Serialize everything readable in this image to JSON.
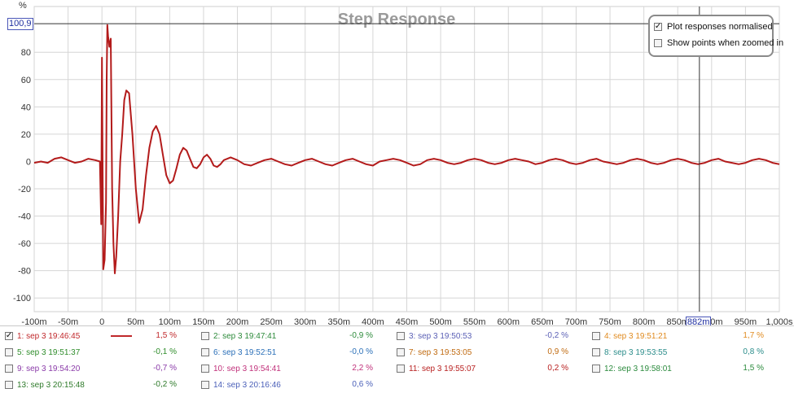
{
  "chart_data": {
    "type": "line",
    "title": "Step Response",
    "ylabel": "%",
    "xlim": [
      -0.1,
      1.0
    ],
    "ylim": [
      -110,
      101
    ],
    "x_ticks": [
      {
        "v": -0.1,
        "label": "-100m"
      },
      {
        "v": -0.05,
        "label": "-50m"
      },
      {
        "v": 0,
        "label": "0"
      },
      {
        "v": 0.05,
        "label": "50m"
      },
      {
        "v": 0.1,
        "label": "100m"
      },
      {
        "v": 0.15,
        "label": "150m"
      },
      {
        "v": 0.2,
        "label": "200m"
      },
      {
        "v": 0.25,
        "label": "250m"
      },
      {
        "v": 0.3,
        "label": "300m"
      },
      {
        "v": 0.35,
        "label": "350m"
      },
      {
        "v": 0.4,
        "label": "400m"
      },
      {
        "v": 0.45,
        "label": "450m"
      },
      {
        "v": 0.5,
        "label": "500m"
      },
      {
        "v": 0.55,
        "label": "550m"
      },
      {
        "v": 0.6,
        "label": "600m"
      },
      {
        "v": 0.65,
        "label": "650m"
      },
      {
        "v": 0.7,
        "label": "700m"
      },
      {
        "v": 0.75,
        "label": "750m"
      },
      {
        "v": 0.8,
        "label": "800m"
      },
      {
        "v": 0.85,
        "label": "850m"
      },
      {
        "v": 0.9,
        "label": "900m"
      },
      {
        "v": 0.95,
        "label": "950m"
      },
      {
        "v": 1.0,
        "label": "1,000s"
      }
    ],
    "y_ticks": [
      -100,
      -80,
      -60,
      -40,
      -20,
      0,
      20,
      40,
      60,
      80
    ],
    "grid": true,
    "cursor": {
      "x": 0.882,
      "x_label": "882m",
      "y": 100.9,
      "y_label": "100,9"
    },
    "series": [
      {
        "name": "1: sep 3 19:46:45",
        "color": "#b31b1b",
        "x": [
          -0.1,
          -0.09,
          -0.08,
          -0.07,
          -0.06,
          -0.05,
          -0.04,
          -0.03,
          -0.02,
          -0.01,
          -0.003,
          -0.001,
          0.0,
          0.002,
          0.004,
          0.006,
          0.007,
          0.008,
          0.009,
          0.011,
          0.013,
          0.015,
          0.017,
          0.019,
          0.021,
          0.024,
          0.027,
          0.03,
          0.033,
          0.036,
          0.04,
          0.045,
          0.05,
          0.055,
          0.06,
          0.065,
          0.07,
          0.075,
          0.08,
          0.085,
          0.09,
          0.095,
          0.1,
          0.105,
          0.11,
          0.115,
          0.12,
          0.125,
          0.13,
          0.135,
          0.14,
          0.145,
          0.15,
          0.155,
          0.16,
          0.165,
          0.17,
          0.175,
          0.18,
          0.19,
          0.2,
          0.21,
          0.22,
          0.23,
          0.24,
          0.25,
          0.26,
          0.27,
          0.28,
          0.29,
          0.3,
          0.31,
          0.32,
          0.33,
          0.34,
          0.35,
          0.36,
          0.37,
          0.38,
          0.39,
          0.4,
          0.41,
          0.42,
          0.43,
          0.44,
          0.45,
          0.46,
          0.47,
          0.48,
          0.49,
          0.5,
          0.51,
          0.52,
          0.53,
          0.54,
          0.55,
          0.56,
          0.57,
          0.58,
          0.59,
          0.6,
          0.61,
          0.62,
          0.63,
          0.64,
          0.65,
          0.66,
          0.67,
          0.68,
          0.69,
          0.7,
          0.71,
          0.72,
          0.73,
          0.74,
          0.75,
          0.76,
          0.77,
          0.78,
          0.79,
          0.8,
          0.81,
          0.82,
          0.83,
          0.84,
          0.85,
          0.86,
          0.87,
          0.88,
          0.89,
          0.9,
          0.91,
          0.92,
          0.93,
          0.94,
          0.95,
          0.96,
          0.97,
          0.98,
          0.99,
          1.0
        ],
        "y": [
          -1,
          0,
          -1,
          2,
          3,
          1,
          -1,
          0,
          2,
          1,
          0,
          -46,
          76,
          -79,
          -72,
          -30,
          60,
          100,
          92,
          84,
          90,
          -20,
          -60,
          -82,
          -70,
          -40,
          0,
          20,
          45,
          52,
          50,
          20,
          -20,
          -45,
          -35,
          -10,
          10,
          22,
          26,
          20,
          5,
          -10,
          -16,
          -14,
          -5,
          5,
          10,
          8,
          2,
          -4,
          -5,
          -2,
          3,
          5,
          2,
          -3,
          -4,
          -2,
          1,
          3,
          1,
          -2,
          -3,
          -1,
          1,
          2,
          0,
          -2,
          -3,
          -1,
          1,
          2,
          0,
          -2,
          -3,
          -1,
          1,
          2,
          0,
          -2,
          -3,
          0,
          1,
          2,
          1,
          -1,
          -3,
          -2,
          1,
          2,
          1,
          -1,
          -2,
          -1,
          1,
          2,
          1,
          -1,
          -2,
          -1,
          1,
          2,
          1,
          0,
          -2,
          -1,
          1,
          2,
          1,
          -1,
          -2,
          -1,
          1,
          2,
          0,
          -1,
          -2,
          -1,
          1,
          2,
          1,
          -1,
          -2,
          -1,
          1,
          2,
          1,
          -1,
          -2,
          -1,
          1,
          2,
          0,
          -1,
          -2,
          -1,
          1,
          2,
          1,
          -1,
          -2
        ]
      }
    ]
  },
  "options": {
    "normalised_label": "Plot responses normalised",
    "normalised_checked": "✓",
    "zoom_points_label": "Show points when zoomed in",
    "zoom_points_checked": ""
  },
  "legend": [
    {
      "name": "1: sep 3 19:46:45",
      "value": "1,5 %",
      "color": "#c0282b",
      "checked": "✓",
      "line": true
    },
    {
      "name": "2: sep 3 19:47:41",
      "value": "-0,9 %",
      "color": "#2c8a3a",
      "checked": ""
    },
    {
      "name": "3: sep 3 19:50:53",
      "value": "-0,2 %",
      "color": "#5a5fb5",
      "checked": ""
    },
    {
      "name": "4: sep 3 19:51:21",
      "value": "1,7 %",
      "color": "#e08a1e",
      "checked": ""
    },
    {
      "name": "5: sep 3 19:51:37",
      "value": "-0,1 %",
      "color": "#2e8c2a",
      "checked": ""
    },
    {
      "name": "6: sep 3 19:52:51",
      "value": "-0,0 %",
      "color": "#2a6fb8",
      "checked": ""
    },
    {
      "name": "7: sep 3 19:53:05",
      "value": "0,9 %",
      "color": "#c06a10",
      "checked": ""
    },
    {
      "name": "8: sep 3 19:53:55",
      "value": "0,8 %",
      "color": "#2a8c8a",
      "checked": ""
    },
    {
      "name": "9: sep 3 19:54:20",
      "value": "-0,7 %",
      "color": "#8a3aa8",
      "checked": ""
    },
    {
      "name": "10: sep 3 19:54:41",
      "value": "2,2 %",
      "color": "#c0307a",
      "checked": ""
    },
    {
      "name": "11: sep 3 19:55:07",
      "value": "0,2 %",
      "color": "#b82020",
      "checked": ""
    },
    {
      "name": "12: sep 3 19:58:01",
      "value": "1,5 %",
      "color": "#2a8a3c",
      "checked": ""
    },
    {
      "name": "13: sep 3 20:15:48",
      "value": "-0,2 %",
      "color": "#2e7a2a",
      "checked": ""
    },
    {
      "name": "14: sep 3 20:16:46",
      "value": "0,6 %",
      "color": "#4a5fb8",
      "checked": ""
    }
  ]
}
